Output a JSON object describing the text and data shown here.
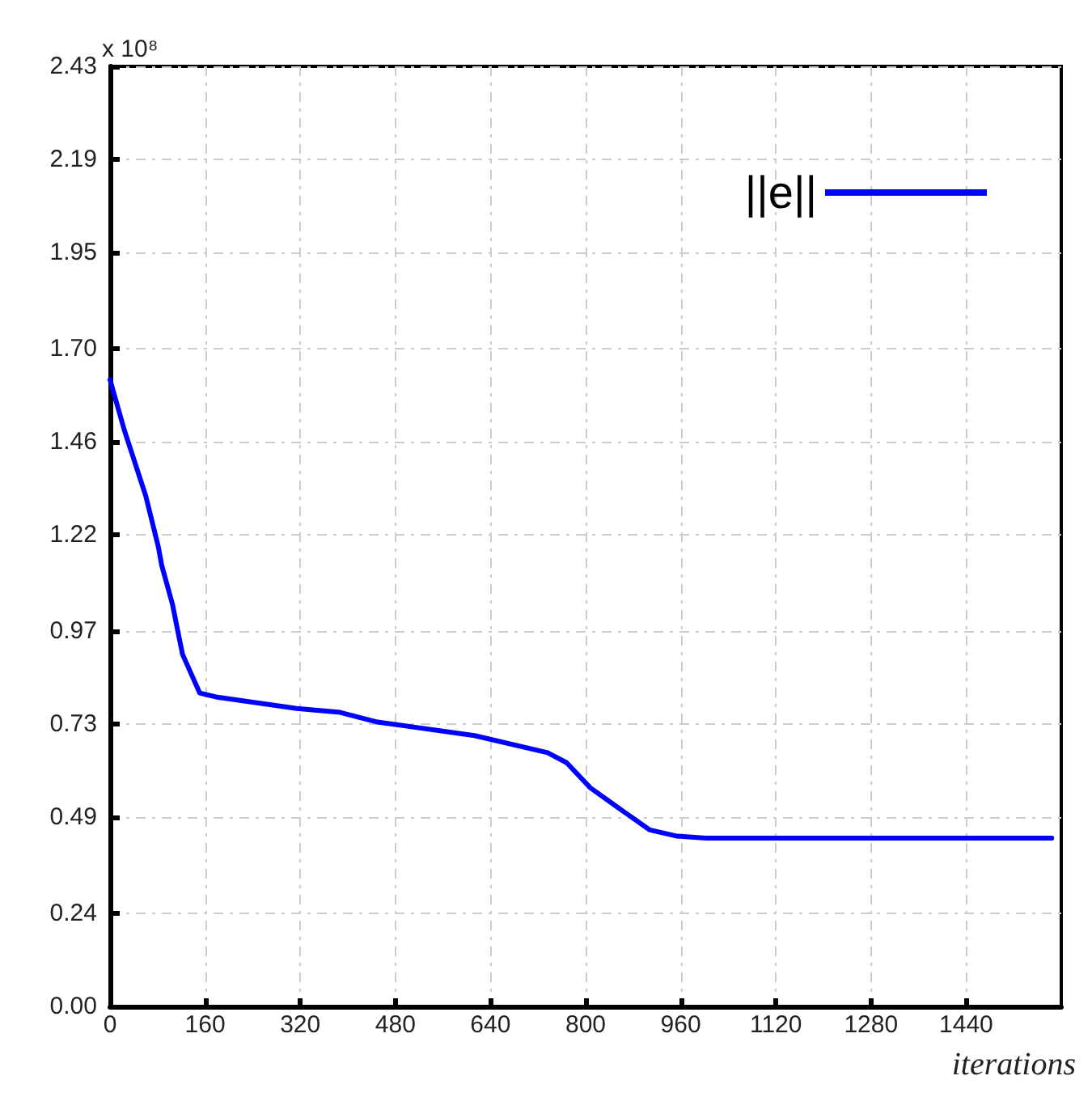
{
  "chart_data": {
    "type": "line",
    "xlabel": "iterations",
    "x": [
      0,
      24,
      60,
      81,
      87,
      105,
      114,
      122,
      151,
      178,
      314,
      387,
      450,
      613,
      736,
      768,
      808,
      858,
      908,
      954,
      1003,
      1584
    ],
    "series": [
      {
        "name": "||e||",
        "color": "#0000ff",
        "values": [
          1.62,
          1.49,
          1.32,
          1.19,
          1.14,
          1.04,
          0.97,
          0.91,
          0.81,
          0.8,
          0.77,
          0.76,
          0.735,
          0.7,
          0.656,
          0.63,
          0.565,
          0.51,
          0.456,
          0.44,
          0.435,
          0.435
        ]
      }
    ],
    "xlim": [
      0,
      1600
    ],
    "xticks": [
      0,
      160,
      320,
      480,
      640,
      800,
      960,
      1120,
      1280,
      1440
    ],
    "ylim": [
      0,
      2.43
    ],
    "yticks": [
      "0.00",
      0.24,
      0.49,
      0.73,
      0.97,
      1.22,
      1.46,
      "1.70",
      1.95,
      2.19,
      2.43
    ],
    "ylabel": "x 10⁸",
    "grid": true,
    "legend": "top right",
    "marker": "none",
    "line_style": "solid"
  }
}
